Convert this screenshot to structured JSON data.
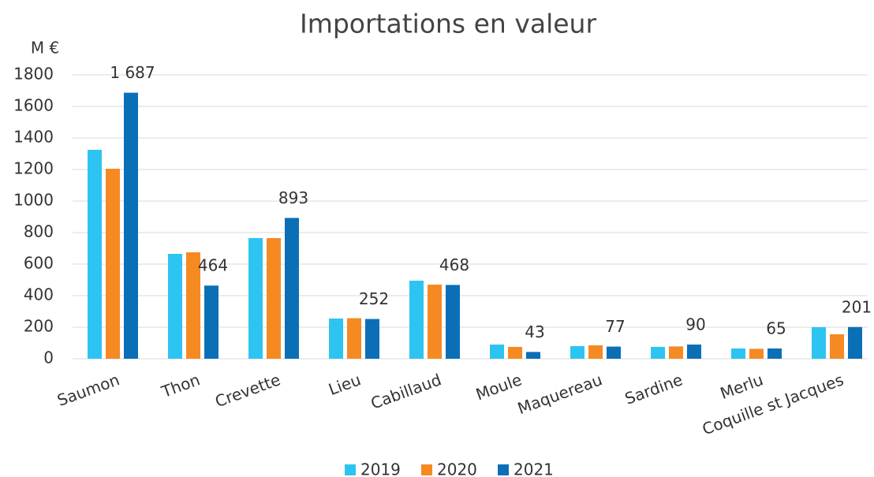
{
  "chart_data": {
    "type": "bar",
    "title": "Importations en valeur",
    "y_label": "M €",
    "categories": [
      "Saumon",
      "Thon",
      "Crevette",
      "Lieu",
      "Cabillaud",
      "Moule",
      "Maquereau",
      "Sardine",
      "Merlu",
      "Coquille st Jacques"
    ],
    "series": [
      {
        "name": "2019",
        "color": "#2ec4f1",
        "values": [
          1325,
          665,
          765,
          255,
          495,
          90,
          80,
          75,
          65,
          200
        ]
      },
      {
        "name": "2020",
        "color": "#f58a23",
        "values": [
          1205,
          675,
          765,
          257,
          470,
          75,
          85,
          78,
          63,
          155
        ]
      },
      {
        "name": "2021",
        "color": "#0b6fb8",
        "values": [
          1687,
          464,
          893,
          252,
          468,
          43,
          77,
          90,
          65,
          201
        ],
        "value_labels": [
          "1 687",
          "464",
          "893",
          "252",
          "468",
          "43",
          "77",
          "90",
          "65",
          "201"
        ]
      }
    ],
    "ylim": [
      0,
      1800
    ],
    "yticks": [
      0,
      200,
      400,
      600,
      800,
      1000,
      1200,
      1400,
      1600,
      1800
    ],
    "grid": true,
    "legend": "bottom"
  }
}
